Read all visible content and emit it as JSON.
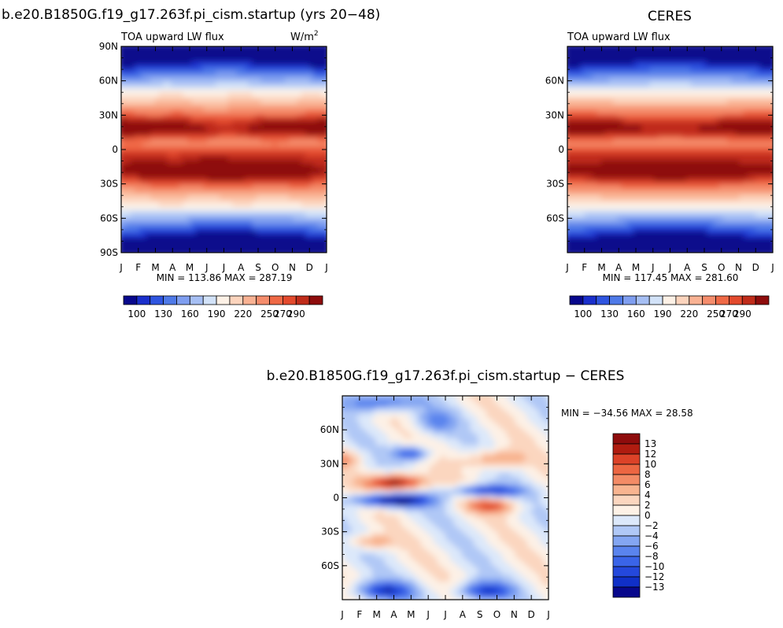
{
  "chart_data": [
    {
      "type": "heatmap",
      "title": "b.e20.B1850G.f19_g17.263f.pi_cism.startup (yrs 20−48)",
      "subtitle_left": "TOA upward LW flux",
      "subtitle_right": "W/m",
      "subtitle_right_sup": "2",
      "x_ticks": [
        "J",
        "F",
        "M",
        "A",
        "M",
        "J",
        "J",
        "A",
        "S",
        "O",
        "N",
        "D",
        "J"
      ],
      "y_ticks": [
        "90N",
        "60N",
        "30N",
        "0",
        "30S",
        "60S",
        "90S"
      ],
      "y_tick_values": [
        90,
        60,
        30,
        0,
        -30,
        -60,
        -90
      ],
      "ylim": [
        -90,
        90
      ],
      "stats": "MIN = 113.86 MAX = 287.19",
      "colorbar_labels": [
        "100",
        "130",
        "160",
        "190",
        "220",
        "250",
        "270",
        "290"
      ],
      "field": "model"
    },
    {
      "type": "heatmap",
      "title": "CERES",
      "subtitle_left": "TOA upward LW flux",
      "x_ticks": [
        "J",
        "F",
        "M",
        "A",
        "M",
        "J",
        "J",
        "A",
        "S",
        "O",
        "N",
        "D",
        "J"
      ],
      "y_ticks": [
        "60N",
        "30N",
        "0",
        "30S",
        "60S"
      ],
      "y_tick_values": [
        60,
        30,
        0,
        -30,
        -60
      ],
      "ylim": [
        -90,
        90
      ],
      "stats": "MIN = 117.45 MAX = 281.60",
      "colorbar_labels": [
        "100",
        "130",
        "160",
        "190",
        "220",
        "250",
        "270",
        "290"
      ],
      "field": "obs"
    },
    {
      "type": "heatmap",
      "title": "b.e20.B1850G.f19_g17.263f.pi_cism.startup − CERES",
      "x_ticks": [
        "J",
        "F",
        "M",
        "A",
        "M",
        "J",
        "J",
        "A",
        "S",
        "O",
        "N",
        "D",
        "J"
      ],
      "y_ticks": [
        "60N",
        "30N",
        "0",
        "30S",
        "60S"
      ],
      "y_tick_values": [
        60,
        30,
        0,
        -30,
        -60
      ],
      "ylim": [
        -90,
        90
      ],
      "stats": "MIN = −34.56 MAX =  28.58",
      "colorbar_labels": [
        "13",
        "12",
        "10",
        "8",
        "6",
        "4",
        "2",
        "0",
        "−2",
        "−4",
        "−6",
        "−8",
        "−10",
        "−12",
        "−13"
      ],
      "field": "diff"
    }
  ],
  "colors": {
    "flux_scale": [
      "#08088c",
      "#1a2fcc",
      "#2f55e0",
      "#4f7ae8",
      "#7f9ef0",
      "#a6bff4",
      "#d2e2f8",
      "#fdf1e6",
      "#fcd4bd",
      "#f9b293",
      "#f58d6c",
      "#ef6946",
      "#e34a2d",
      "#c02c1a",
      "#8e0c0c"
    ],
    "diff_scale": [
      "#08088c",
      "#1030c8",
      "#2448dc",
      "#3a64e8",
      "#5a84ee",
      "#84a6f2",
      "#b0c8f6",
      "#dce8fa",
      "#fdf1e6",
      "#fbd6bf",
      "#f8b490",
      "#f38b66",
      "#ec6642",
      "#dc4228",
      "#b01c10",
      "#8e0c0c"
    ]
  }
}
